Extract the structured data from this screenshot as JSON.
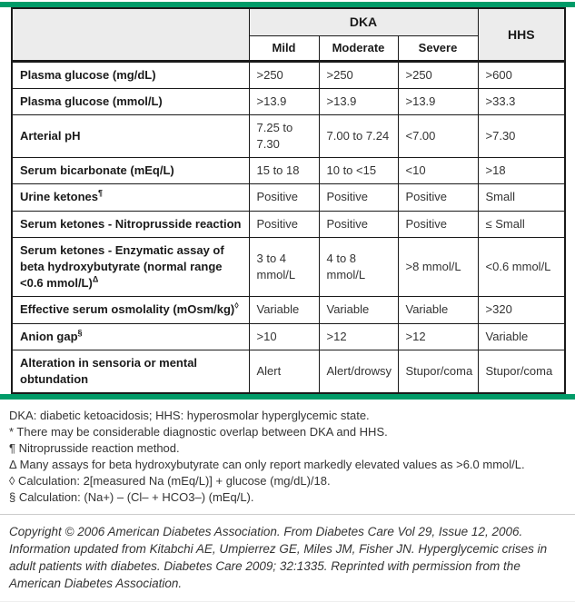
{
  "colors": {
    "accent_green": "#009b68",
    "header_bg": "#ececec",
    "border": "#1a1a1a"
  },
  "table": {
    "header": {
      "group_label": "DKA",
      "hhs_label": "HHS",
      "sub_labels": [
        "Mild",
        "Moderate",
        "Severe"
      ]
    },
    "rows": [
      {
        "label": "Plasma glucose (mg/dL)",
        "sup": "",
        "values": [
          ">250",
          ">250",
          ">250",
          ">600"
        ]
      },
      {
        "label": "Plasma glucose (mmol/L)",
        "sup": "",
        "values": [
          ">13.9",
          ">13.9",
          ">13.9",
          ">33.3"
        ]
      },
      {
        "label": "Arterial pH",
        "sup": "",
        "values": [
          "7.25 to 7.30",
          "7.00 to 7.24",
          "<7.00",
          ">7.30"
        ]
      },
      {
        "label": "Serum bicarbonate (mEq/L)",
        "sup": "",
        "values": [
          "15 to 18",
          "10 to <15",
          "<10",
          ">18"
        ]
      },
      {
        "label": "Urine ketones",
        "sup": "¶",
        "values": [
          "Positive",
          "Positive",
          "Positive",
          "Small"
        ]
      },
      {
        "label": "Serum ketones - Nitroprusside reaction",
        "sup": "",
        "values": [
          "Positive",
          "Positive",
          "Positive",
          "≤ Small"
        ]
      },
      {
        "label": "Serum ketones - Enzymatic assay of beta hydroxybutyrate (normal range <0.6 mmol/L)",
        "sup": "Δ",
        "values": [
          "3 to 4 mmol/L",
          "4 to 8 mmol/L",
          ">8 mmol/L",
          "<0.6 mmol/L"
        ]
      },
      {
        "label": "Effective serum osmolality (mOsm/kg)",
        "sup": "◊",
        "values": [
          "Variable",
          "Variable",
          "Variable",
          ">320"
        ]
      },
      {
        "label": "Anion gap",
        "sup": "§",
        "values": [
          ">10",
          ">12",
          ">12",
          "Variable"
        ]
      },
      {
        "label": "Alteration in sensoria or mental obtundation",
        "sup": "",
        "values": [
          "Alert",
          "Alert/drowsy",
          "Stupor/coma",
          "Stupor/coma"
        ]
      }
    ]
  },
  "footnotes": [
    "DKA: diabetic ketoacidosis; HHS: hyperosmolar hyperglycemic state.",
    "* There may be considerable diagnostic overlap between DKA and HHS.",
    "¶ Nitroprusside reaction method.",
    "Δ Many assays for beta hydroxybutyrate can only report markedly elevated values as >6.0 mmol/L.",
    "◊ Calculation: 2[measured Na (mEq/L)] + glucose (mg/dL)/18.",
    "§ Calculation: (Na+) – (Cl– + HCO3–) (mEq/L)."
  ],
  "copyright": "Copyright © 2006 American Diabetes Association. From Diabetes Care Vol 29, Issue 12, 2006. Information updated from Kitabchi AE, Umpierrez GE, Miles JM, Fisher JN. Hyperglycemic crises in adult patients with diabetes. Diabetes Care 2009; 32:1335. Reprinted with permission from the American Diabetes Association."
}
